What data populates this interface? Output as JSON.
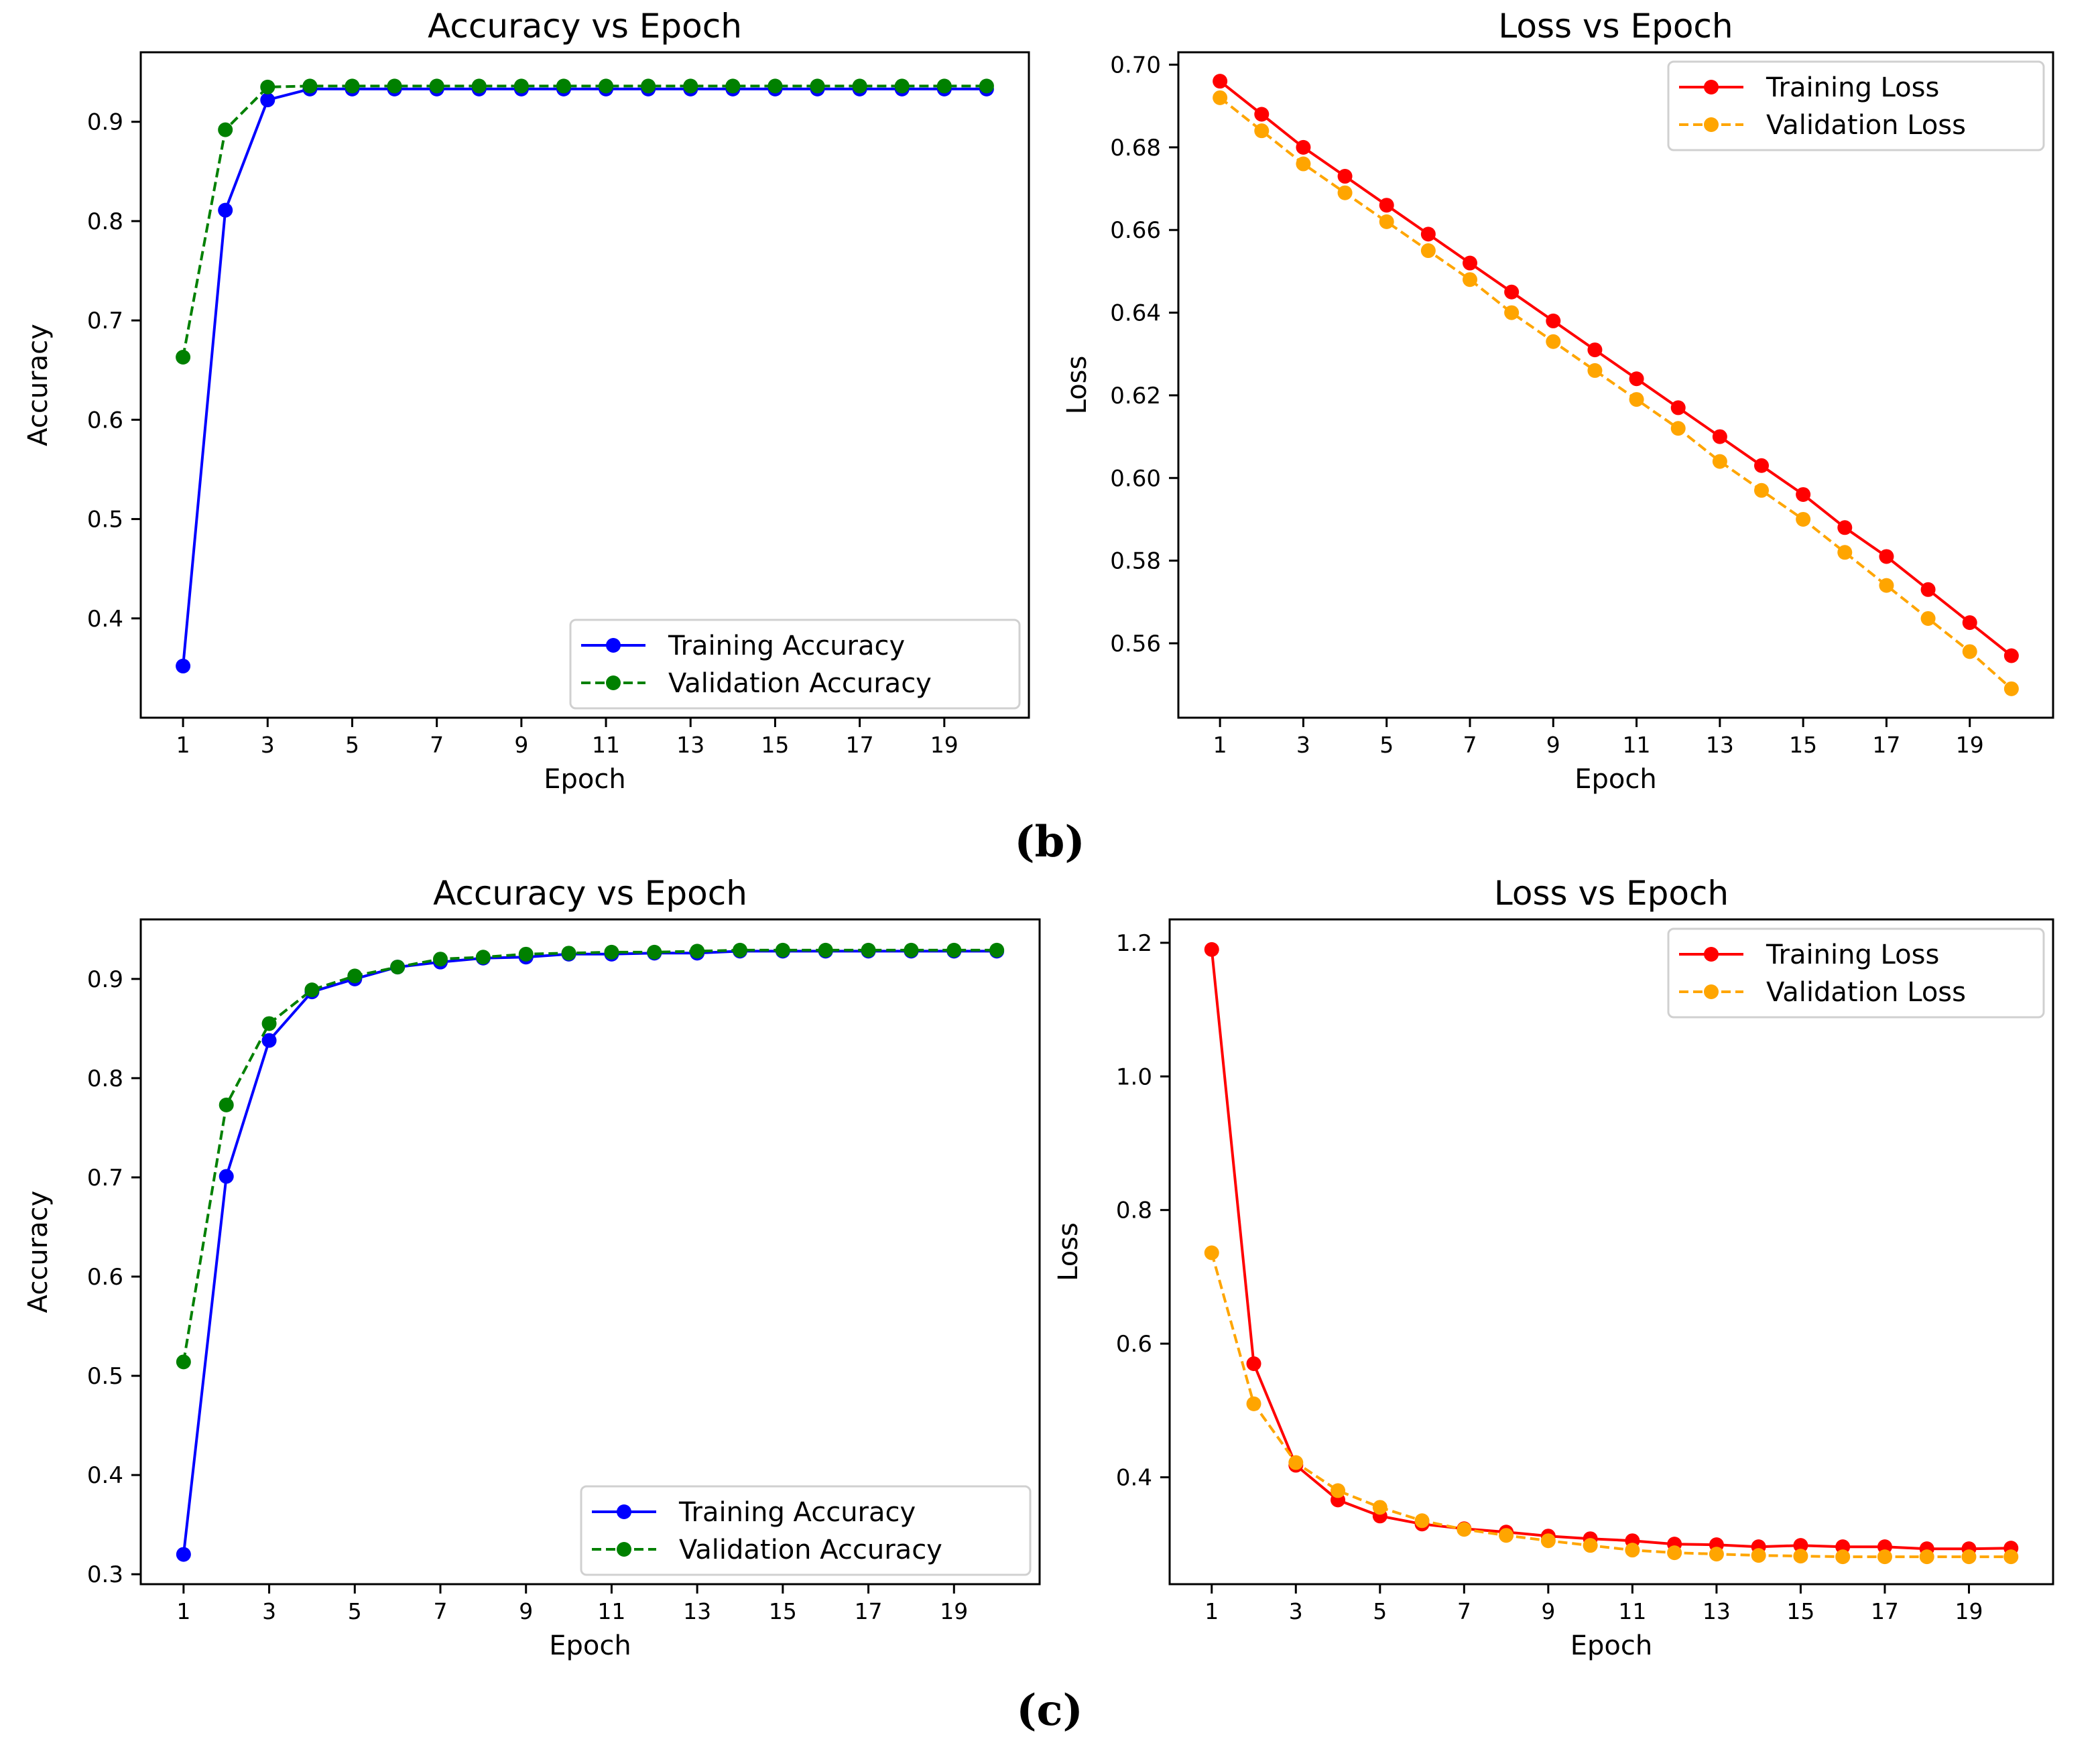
{
  "figure": {
    "panel_labels": [
      "(b)",
      "(c)"
    ]
  },
  "chart_data": [
    {
      "id": "b-acc",
      "type": "line",
      "title": "Accuracy vs Epoch",
      "xlabel": "Epoch",
      "ylabel": "Accuracy",
      "xlim": [
        0,
        21
      ],
      "ylim": [
        0.3,
        0.97
      ],
      "xticks": [
        1,
        3,
        5,
        7,
        9,
        11,
        13,
        15,
        17,
        19
      ],
      "yticks": [
        0.4,
        0.5,
        0.6,
        0.7,
        0.8,
        0.9
      ],
      "ytick_labels": [
        "0.4",
        "0.5",
        "0.6",
        "0.7",
        "0.8",
        "0.9"
      ],
      "legend_position": "bottom-right",
      "x": [
        1,
        2,
        3,
        4,
        5,
        6,
        7,
        8,
        9,
        10,
        11,
        12,
        13,
        14,
        15,
        16,
        17,
        18,
        19,
        20
      ],
      "series": [
        {
          "name": "Training Accuracy",
          "color": "#0000ff",
          "dash": "solid",
          "values": [
            0.352,
            0.811,
            0.922,
            0.933,
            0.933,
            0.933,
            0.933,
            0.933,
            0.933,
            0.933,
            0.933,
            0.933,
            0.933,
            0.933,
            0.933,
            0.933,
            0.933,
            0.933,
            0.933,
            0.933
          ]
        },
        {
          "name": "Validation Accuracy",
          "color": "#008000",
          "dash": "dashed",
          "values": [
            0.663,
            0.892,
            0.935,
            0.936,
            0.936,
            0.936,
            0.936,
            0.936,
            0.936,
            0.936,
            0.936,
            0.936,
            0.936,
            0.936,
            0.936,
            0.936,
            0.936,
            0.936,
            0.936,
            0.936
          ]
        }
      ]
    },
    {
      "id": "b-loss",
      "type": "line",
      "title": "Loss vs Epoch",
      "xlabel": "Epoch",
      "ylabel": "Loss",
      "xlimit_note": "",
      "xlim": [
        0,
        21
      ],
      "ylim": [
        0.542,
        0.703
      ],
      "xticks": [
        1,
        3,
        5,
        7,
        9,
        11,
        13,
        15,
        17,
        19
      ],
      "yticks": [
        0.56,
        0.58,
        0.6,
        0.62,
        0.64,
        0.66,
        0.68,
        0.7
      ],
      "ytick_labels": [
        "0.56",
        "0.58",
        "0.60",
        "0.62",
        "0.64",
        "0.66",
        "0.68",
        "0.70"
      ],
      "legend_position": "top-right",
      "x": [
        1,
        2,
        3,
        4,
        5,
        6,
        7,
        8,
        9,
        10,
        11,
        12,
        13,
        14,
        15,
        16,
        17,
        18,
        19,
        20
      ],
      "series": [
        {
          "name": "Training Loss",
          "color": "#ff0000",
          "dash": "solid",
          "values": [
            0.696,
            0.688,
            0.68,
            0.673,
            0.666,
            0.659,
            0.652,
            0.645,
            0.638,
            0.631,
            0.624,
            0.617,
            0.61,
            0.603,
            0.596,
            0.588,
            0.581,
            0.573,
            0.565,
            0.557
          ]
        },
        {
          "name": "Validation Loss",
          "color": "#ffa500",
          "dash": "dashed",
          "values": [
            0.692,
            0.684,
            0.676,
            0.669,
            0.662,
            0.655,
            0.648,
            0.64,
            0.633,
            0.626,
            0.619,
            0.612,
            0.604,
            0.597,
            0.59,
            0.582,
            0.574,
            0.566,
            0.558,
            0.549
          ]
        }
      ]
    },
    {
      "id": "c-acc",
      "type": "line",
      "title": "Accuracy vs Epoch",
      "xlabel": "Epoch",
      "ylabel": "Accuracy",
      "xlim": [
        0,
        21
      ],
      "ylim": [
        0.29,
        0.96
      ],
      "xticks": [
        1,
        3,
        5,
        7,
        9,
        11,
        13,
        15,
        17,
        19
      ],
      "yticks": [
        0.3,
        0.4,
        0.5,
        0.6,
        0.7,
        0.8,
        0.9
      ],
      "ytick_labels": [
        "0.3",
        "0.4",
        "0.5",
        "0.6",
        "0.7",
        "0.8",
        "0.9"
      ],
      "legend_position": "bottom-right",
      "x": [
        1,
        2,
        3,
        4,
        5,
        6,
        7,
        8,
        9,
        10,
        11,
        12,
        13,
        14,
        15,
        16,
        17,
        18,
        19,
        20
      ],
      "series": [
        {
          "name": "Training Accuracy",
          "color": "#0000ff",
          "dash": "solid",
          "values": [
            0.32,
            0.701,
            0.838,
            0.887,
            0.9,
            0.912,
            0.917,
            0.921,
            0.922,
            0.925,
            0.925,
            0.926,
            0.926,
            0.928,
            0.928,
            0.928,
            0.928,
            0.928,
            0.928,
            0.928
          ]
        },
        {
          "name": "Validation Accuracy",
          "color": "#008000",
          "dash": "dashed",
          "values": [
            0.514,
            0.773,
            0.855,
            0.889,
            0.903,
            0.912,
            0.92,
            0.922,
            0.925,
            0.926,
            0.927,
            0.927,
            0.928,
            0.929,
            0.929,
            0.929,
            0.929,
            0.929,
            0.929,
            0.929
          ]
        }
      ]
    },
    {
      "id": "c-loss",
      "type": "line",
      "title": "Loss vs Epoch",
      "xlabel": "Epoch",
      "ylabel": "Loss",
      "xlim": [
        0,
        21
      ],
      "ylim": [
        0.24,
        1.235
      ],
      "xticks": [
        1,
        3,
        5,
        7,
        9,
        11,
        13,
        15,
        17,
        19
      ],
      "yticks": [
        0.4,
        0.6,
        0.8,
        1.0,
        1.2
      ],
      "ytick_labels": [
        "0.4",
        "0.6",
        "0.8",
        "1.0",
        "1.2"
      ],
      "legend_position": "top-right",
      "x": [
        1,
        2,
        3,
        4,
        5,
        6,
        7,
        8,
        9,
        10,
        11,
        12,
        13,
        14,
        15,
        16,
        17,
        18,
        19,
        20
      ],
      "series": [
        {
          "name": "Training Loss",
          "color": "#ff0000",
          "dash": "solid",
          "values": [
            1.19,
            0.57,
            0.418,
            0.366,
            0.342,
            0.33,
            0.323,
            0.318,
            0.312,
            0.308,
            0.305,
            0.3,
            0.299,
            0.296,
            0.298,
            0.296,
            0.296,
            0.293,
            0.293,
            0.294
          ]
        },
        {
          "name": "Validation Loss",
          "color": "#ffa500",
          "dash": "dashed",
          "values": [
            0.736,
            0.51,
            0.422,
            0.38,
            0.355,
            0.335,
            0.322,
            0.313,
            0.305,
            0.298,
            0.291,
            0.287,
            0.285,
            0.283,
            0.282,
            0.281,
            0.281,
            0.281,
            0.281,
            0.281
          ]
        }
      ]
    }
  ]
}
